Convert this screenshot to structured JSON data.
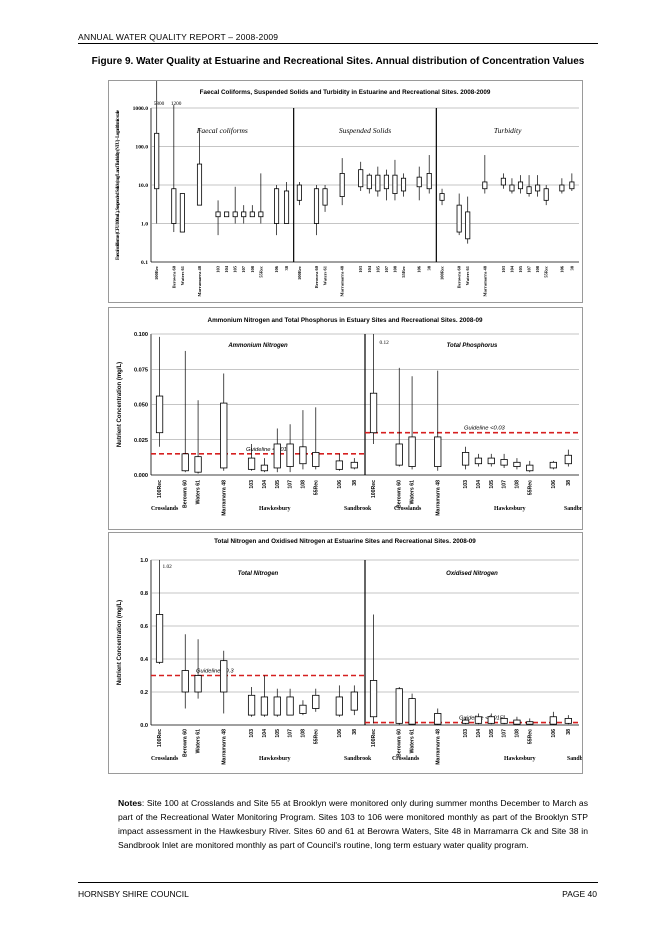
{
  "header": {
    "report_title": "ANNUAL WATER QUALITY REPORT – 2008-2009"
  },
  "figure_title": "Figure 9. Water Quality at Estuarine and Recreational Sites. Annual distribution of Concentration Values",
  "notes": {
    "label": "Notes",
    "text": ": Site 100 at Crosslands and Site 55 at Brooklyn were monitored only during summer months December to March as part of the Recreational Water Monitoring Program. Sites 103 to 106 were monitored monthly as part of the Brooklyn STP impact assessment in the Hawkesbury River. Sites 60 and 61 at Berowra Waters, Site 48 in Marramarra Ck and Site 38 in Sandbrook Inlet are monitored monthly as part of Council's routine, long term estuary water quality program."
  },
  "footer": {
    "left": "HORNSBY SHIRE COUNCIL",
    "page_label": "PAGE",
    "page_number": "40"
  },
  "colors": {
    "box": "#000000",
    "guideline": "#d62020",
    "grid": "#8c8c8c"
  },
  "chart_data": [
    {
      "type": "boxplot",
      "title": "Faecal Coliforms, Suspended Solids and Turbidity in Estuarine and Recreational Sites. 2008-2009",
      "ylabel": "Faecal coliforms (CFU/100mL), Suspended Solids (mg/L and Turbidity (NTU) - Logarithmic scale",
      "yscale": "log",
      "ylim": [
        0.1,
        1000
      ],
      "yticks": [
        "0.1",
        "1.0",
        "10.0",
        "100.0",
        "1000.0"
      ],
      "yticks_values": [
        0.1,
        1,
        10,
        100,
        1000
      ],
      "offscale_labels": [
        "5800",
        "1200"
      ],
      "sections": [
        {
          "name": "Faecal coliforms",
          "categories": [
            "100Rec",
            "Berowra 60",
            "Waters 61",
            "Marramarra 48",
            "103",
            "104",
            "105",
            "107",
            "108",
            "55Rec",
            "106",
            "38"
          ],
          "boxes": [
            [
              1,
              8,
              80,
              220,
              5800
            ],
            [
              0.6,
              1,
              8,
              8,
              1200
            ],
            [
              0.6,
              0.6,
              6,
              6,
              6
            ],
            [
              5,
              3,
              9,
              35,
              300
            ],
            [
              0.5,
              1.5,
              1.5,
              2,
              4
            ],
            [
              1.5,
              1.5,
              2,
              2,
              2
            ],
            [
              1,
              1.5,
              1.5,
              2,
              9
            ],
            [
              1,
              1.5,
              1.5,
              2,
              3
            ],
            [
              1.5,
              1.5,
              1.5,
              2,
              3
            ],
            [
              1,
              1.5,
              1.5,
              2,
              20
            ],
            [
              0.5,
              1,
              4,
              8,
              10
            ],
            [
              1,
              1,
              5,
              7,
              12
            ]
          ]
        },
        {
          "name": "Suspended Solids",
          "categories": [
            "100Rec",
            "Berowra 60",
            "Waters 61",
            "Marramarra 48",
            "103",
            "104",
            "105",
            "107",
            "108",
            "55Rec",
            "106",
            "38"
          ],
          "boxes": [
            [
              3,
              4,
              5,
              10,
              12
            ],
            [
              0.5,
              1,
              4,
              8,
              10
            ],
            [
              2,
              3,
              5,
              8,
              10
            ],
            [
              3,
              5,
              8,
              20,
              50
            ],
            [
              7,
              9,
              10,
              25,
              40
            ],
            [
              6,
              8,
              10,
              18,
              20
            ],
            [
              5,
              7,
              8,
              18,
              30
            ],
            [
              4,
              8,
              9,
              18,
              25
            ],
            [
              4,
              6,
              9,
              18,
              45
            ],
            [
              5,
              7,
              10,
              15,
              20
            ],
            [
              4,
              9,
              10,
              16,
              30
            ],
            [
              6,
              8,
              10,
              20,
              60
            ]
          ]
        },
        {
          "name": "Turbidity",
          "categories": [
            "100Rec",
            "Berowra 60",
            "Waters 61",
            "Marramarra 48",
            "103",
            "104",
            "105",
            "107",
            "108",
            "55Rec",
            "106",
            "38"
          ],
          "boxes": [
            [
              3,
              4,
              5,
              6,
              8
            ],
            [
              0.5,
              0.6,
              1,
              3,
              6
            ],
            [
              0.3,
              0.4,
              0.6,
              2,
              5
            ],
            [
              6,
              8,
              10,
              12,
              60
            ],
            [
              8,
              10,
              12,
              15,
              20
            ],
            [
              6,
              7,
              8,
              10,
              15
            ],
            [
              6,
              8,
              9,
              12,
              18
            ],
            [
              5,
              6,
              8,
              9,
              18
            ],
            [
              5,
              7,
              8,
              10,
              18
            ],
            [
              3,
              4,
              5,
              8,
              10
            ],
            [
              6,
              7,
              8,
              10,
              15
            ],
            [
              7,
              8,
              9,
              12,
              20
            ]
          ]
        }
      ]
    },
    {
      "type": "boxplot",
      "title": "Ammonium Nitrogen and Total Phosphorus in Estuary Sites and Recreational Sites. 2008-09",
      "ylabel": "Nutrient Concentration (mg/L)",
      "ylim": [
        0,
        0.1
      ],
      "yticks": [
        "0.000",
        "0.025",
        "0.050",
        "0.075",
        "0.100"
      ],
      "offscale_labels": [
        "0.12"
      ],
      "sections": [
        {
          "name": "Ammonium Nitrogen",
          "guideline_value": 0.015,
          "guideline_label": "Guideline <0.015",
          "categories": [
            "100Rec",
            "Berowra 60",
            "Waters 61",
            "Marramarra 48",
            "103",
            "104",
            "105",
            "107",
            "108",
            "55Rec",
            "106",
            "38"
          ],
          "boxes": [
            [
              0.02,
              0.03,
              0.04,
              0.056,
              0.098
            ],
            [
              0.002,
              0.003,
              0.01,
              0.015,
              0.088
            ],
            [
              0.001,
              0.002,
              0.004,
              0.013,
              0.053
            ],
            [
              0.003,
              0.005,
              0.02,
              0.051,
              0.072
            ],
            [
              0.003,
              0.004,
              0.008,
              0.012,
              0.022
            ],
            [
              0.002,
              0.003,
              0.005,
              0.007,
              0.012
            ],
            [
              0.002,
              0.005,
              0.01,
              0.022,
              0.033
            ],
            [
              0.002,
              0.006,
              0.012,
              0.022,
              0.036
            ],
            [
              0.004,
              0.008,
              0.012,
              0.02,
              0.046
            ],
            [
              0.004,
              0.006,
              0.01,
              0.016,
              0.048
            ],
            [
              0.003,
              0.004,
              0.006,
              0.01,
              0.015
            ],
            [
              0.004,
              0.005,
              0.007,
              0.009,
              0.012
            ]
          ]
        },
        {
          "name": "Total Phosphorus",
          "guideline_value": 0.03,
          "guideline_label": "Guideline <0.03",
          "categories": [
            "100Rec",
            "Berowra 60",
            "Waters 61",
            "Marramarra 48",
            "103",
            "104",
            "105",
            "107",
            "108",
            "55Rec",
            "106",
            "38"
          ],
          "boxes": [
            [
              0.022,
              0.03,
              0.04,
              0.058,
              0.12
            ],
            [
              0.006,
              0.007,
              0.015,
              0.022,
              0.076
            ],
            [
              0.004,
              0.006,
              0.015,
              0.027,
              0.07
            ],
            [
              0.003,
              0.006,
              0.015,
              0.027,
              0.074
            ],
            [
              0.004,
              0.007,
              0.01,
              0.016,
              0.02
            ],
            [
              0.006,
              0.008,
              0.01,
              0.012,
              0.015
            ],
            [
              0.006,
              0.008,
              0.01,
              0.012,
              0.015
            ],
            [
              0.005,
              0.007,
              0.008,
              0.011,
              0.015
            ],
            [
              0.004,
              0.006,
              0.007,
              0.009,
              0.012
            ],
            [
              0.002,
              0.003,
              0.005,
              0.007,
              0.01
            ],
            [
              0.004,
              0.005,
              0.007,
              0.009,
              0.01
            ],
            [
              0.006,
              0.008,
              0.01,
              0.014,
              0.018
            ]
          ]
        }
      ],
      "groups": [
        "Crosslands",
        "Hawkesbury",
        "Sandbrook",
        "Crosslands",
        "Hawkesbury",
        "Sandbrook"
      ]
    },
    {
      "type": "boxplot",
      "title": "Total Nitrogen and Oxidised Nitrogen at Estuarine Sites and Recreational Sites. 2008-09",
      "ylabel": "Nutrient Concentration (mg/L)",
      "ylim": [
        0,
        1.0
      ],
      "yticks": [
        "0.0",
        "0.2",
        "0.4",
        "0.6",
        "0.8",
        "1.0"
      ],
      "offscale_labels": [
        "1.02"
      ],
      "sections": [
        {
          "name": "Total Nitrogen",
          "guideline_value": 0.3,
          "guideline_label": "Guideline <0.3",
          "categories": [
            "100Rec",
            "Berowra 60",
            "Waters 61",
            "Marramarra 48",
            "103",
            "104",
            "105",
            "107",
            "108",
            "55Rec",
            "106",
            "38"
          ],
          "boxes": [
            [
              0.37,
              0.38,
              0.5,
              0.67,
              1.02
            ],
            [
              0.1,
              0.2,
              0.28,
              0.33,
              0.55
            ],
            [
              0.16,
              0.2,
              0.25,
              0.3,
              0.52
            ],
            [
              0.07,
              0.2,
              0.3,
              0.39,
              0.45
            ],
            [
              0.05,
              0.06,
              0.1,
              0.18,
              0.23
            ],
            [
              0.05,
              0.06,
              0.1,
              0.17,
              0.3
            ],
            [
              0.05,
              0.06,
              0.12,
              0.17,
              0.22
            ],
            [
              0.06,
              0.06,
              0.1,
              0.17,
              0.22
            ],
            [
              0.06,
              0.07,
              0.1,
              0.12,
              0.15
            ],
            [
              0.08,
              0.1,
              0.13,
              0.18,
              0.22
            ],
            [
              0.05,
              0.06,
              0.12,
              0.17,
              0.24
            ],
            [
              0.06,
              0.09,
              0.15,
              0.2,
              0.24
            ]
          ]
        },
        {
          "name": "Oxidised Nitrogen",
          "guideline_value": 0.015,
          "guideline_label": "Guideline <0.015",
          "categories": [
            "100Rec",
            "Berowra 60",
            "Waters 61",
            "Marramarra 48",
            "103",
            "104",
            "105",
            "107",
            "108",
            "55Rec",
            "106",
            "38"
          ],
          "boxes": [
            [
              0.01,
              0.05,
              0.1,
              0.27,
              0.67
            ],
            [
              0.002,
              0.01,
              0.05,
              0.22,
              0.23
            ],
            [
              0.002,
              0.005,
              0.03,
              0.16,
              0.19
            ],
            [
              0.001,
              0.005,
              0.02,
              0.07,
              0.1
            ],
            [
              0.005,
              0.01,
              0.02,
              0.03,
              0.05
            ],
            [
              0.005,
              0.01,
              0.03,
              0.05,
              0.07
            ],
            [
              0.005,
              0.01,
              0.03,
              0.05,
              0.07
            ],
            [
              0.005,
              0.01,
              0.02,
              0.04,
              0.06
            ],
            [
              0.002,
              0.005,
              0.02,
              0.03,
              0.05
            ],
            [
              0.002,
              0.005,
              0.01,
              0.02,
              0.04
            ],
            [
              0.002,
              0.005,
              0.02,
              0.05,
              0.08
            ],
            [
              0.005,
              0.01,
              0.02,
              0.04,
              0.06
            ]
          ]
        }
      ],
      "groups": [
        "Crosslands",
        "Hawkesbury",
        "Sandbrook",
        "Crosslands",
        "Hawkesbury",
        "Sandbrook"
      ]
    }
  ]
}
